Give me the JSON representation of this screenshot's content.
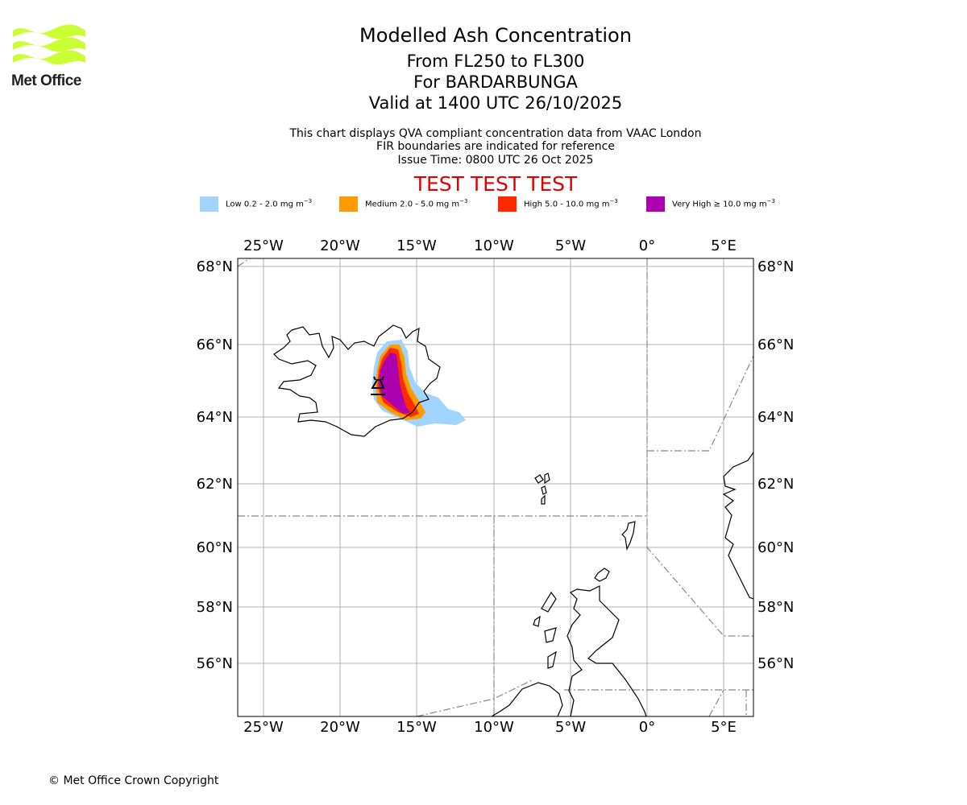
{
  "logo": {
    "text": "Met Office",
    "brand_color": "#ccff33",
    "text_color": "#231f20"
  },
  "title": {
    "main": "Modelled Ash Concentration",
    "levels": "From FL250 to FL300",
    "volcano": "For BARDARBUNGA",
    "valid": "Valid at 1400 UTC 26/10/2025"
  },
  "subtitle": {
    "line1": "This chart displays QVA compliant concentration data from VAAC London",
    "line2": "FIR boundaries are indicated for reference",
    "line3": "Issue Time: 0800 UTC 26 Oct 2025"
  },
  "test_banner": {
    "text": "TEST TEST TEST",
    "color": "#e00000"
  },
  "legend": {
    "unit_base": "mg m",
    "unit_exp": "−3",
    "items": [
      {
        "label": "Low 0.2 - 2.0",
        "color": "#a0d4fc"
      },
      {
        "label": "Medium 2.0 - 5.0",
        "color": "#ff9a00"
      },
      {
        "label": "High 5.0 - 10.0",
        "color": "#ff2a00"
      },
      {
        "label": "Very High  ≥  10.0",
        "color": "#ad00ae"
      }
    ]
  },
  "map": {
    "lon_labels": [
      "25°W",
      "20°W",
      "15°W",
      "10°W",
      "5°W",
      "0°",
      "5°E"
    ],
    "lat_labels": [
      "68°N",
      "66°N",
      "64°N",
      "62°N",
      "60°N",
      "58°N",
      "56°N"
    ],
    "volcano_name": "BARDARBUNGA",
    "volcano_lat": 64.64,
    "volcano_lon": -17.53
  },
  "footer": {
    "copyright": "© Met Office Crown Copyright"
  }
}
